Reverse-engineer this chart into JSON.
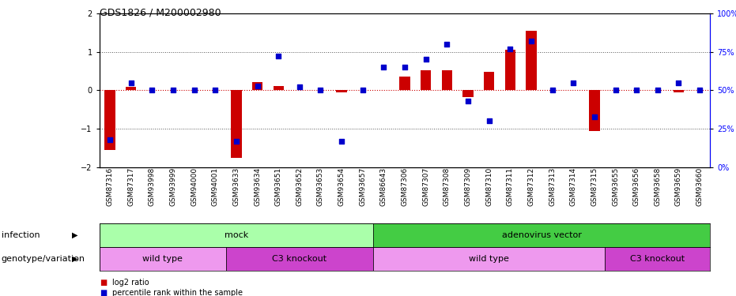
{
  "title": "GDS1826 / M200002980",
  "samples": [
    "GSM87316",
    "GSM87317",
    "GSM93998",
    "GSM93999",
    "GSM94000",
    "GSM94001",
    "GSM93633",
    "GSM93634",
    "GSM93651",
    "GSM93652",
    "GSM93653",
    "GSM93654",
    "GSM93657",
    "GSM86643",
    "GSM87306",
    "GSM87307",
    "GSM87308",
    "GSM87309",
    "GSM87310",
    "GSM87311",
    "GSM87312",
    "GSM87313",
    "GSM87314",
    "GSM87315",
    "GSM93655",
    "GSM93656",
    "GSM93658",
    "GSM93659",
    "GSM93660"
  ],
  "log2_ratio": [
    -1.55,
    0.08,
    0.0,
    0.0,
    0.0,
    0.0,
    -1.75,
    0.22,
    0.12,
    0.0,
    0.0,
    -0.05,
    0.0,
    0.0,
    0.35,
    0.52,
    0.52,
    -0.18,
    0.48,
    1.05,
    1.55,
    0.0,
    0.0,
    -1.05,
    0.0,
    0.0,
    0.0,
    -0.05,
    0.0
  ],
  "percentile": [
    18,
    55,
    50,
    50,
    50,
    50,
    17,
    53,
    72,
    52,
    50,
    17,
    50,
    65,
    65,
    70,
    80,
    43,
    30,
    77,
    82,
    50,
    55,
    33,
    50,
    50,
    50,
    55,
    50
  ],
  "bar_color": "#cc0000",
  "dot_color": "#0000cc",
  "ylim": [
    -2,
    2
  ],
  "yticks_left": [
    -2,
    -1,
    0,
    1,
    2
  ],
  "yticks_right": [
    0,
    25,
    50,
    75,
    100
  ],
  "hline_color": "#cc0000",
  "dotline_color": "#555555",
  "infection_mock_range": [
    0,
    12
  ],
  "infection_adeno_range": [
    13,
    28
  ],
  "infection_mock_color": "#aaffaa",
  "infection_adeno_color": "#44cc44",
  "geno_wt1_range": [
    0,
    5
  ],
  "geno_c3k1_range": [
    6,
    12
  ],
  "geno_wt2_range": [
    13,
    23
  ],
  "geno_c3k2_range": [
    24,
    28
  ],
  "geno_wt_color": "#ee99ee",
  "geno_c3k_color": "#cc44cc",
  "bg_color": "#e8e8e8"
}
